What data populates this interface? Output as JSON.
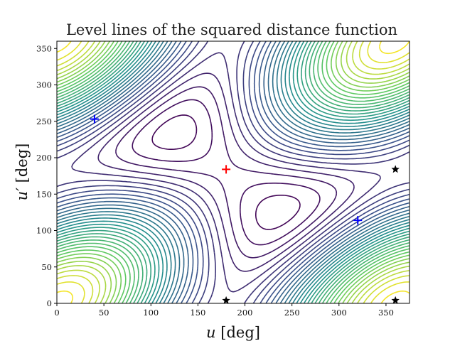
{
  "chart_data": {
    "type": "contour",
    "title": "Level lines of the squared distance function",
    "xlabel": {
      "var": "u",
      "unit": " [deg]"
    },
    "ylabel": {
      "var": "u′",
      "unit": " [deg]"
    },
    "xlim": [
      0,
      375
    ],
    "ylim": [
      0,
      360
    ],
    "xticks": [
      0,
      50,
      100,
      150,
      200,
      250,
      300,
      350
    ],
    "yticks": [
      0,
      50,
      100,
      150,
      200,
      250,
      300,
      350
    ],
    "colormap": [
      "#440154",
      "#3b528b",
      "#21918c",
      "#5ec962",
      "#fde725"
    ],
    "levels": 34,
    "markers": [
      {
        "name": "red-plus-marker",
        "shape": "plus",
        "color": "#ff0000",
        "x": 180,
        "y": 184
      },
      {
        "name": "blue-plus-marker-1",
        "shape": "plus",
        "color": "#0000ff",
        "x": 40,
        "y": 253
      },
      {
        "name": "blue-plus-marker-2",
        "shape": "plus",
        "color": "#0000ff",
        "x": 320,
        "y": 114
      },
      {
        "name": "star-marker-1",
        "shape": "star",
        "color": "#000000",
        "x": 360,
        "y": 184
      },
      {
        "name": "star-marker-2",
        "shape": "star",
        "color": "#000000",
        "x": 360,
        "y": 4
      },
      {
        "name": "star-marker-3",
        "shape": "star",
        "color": "#000000",
        "x": 180,
        "y": 4
      }
    ]
  }
}
